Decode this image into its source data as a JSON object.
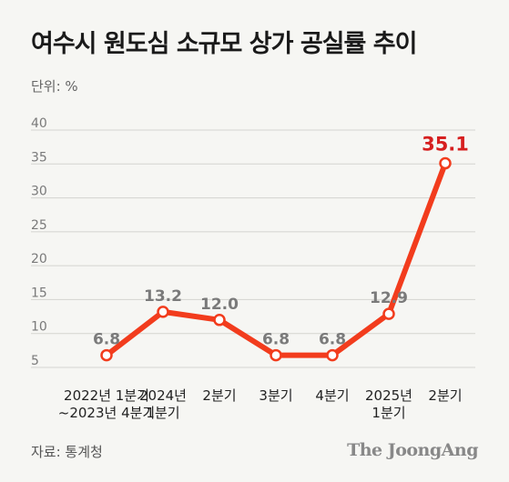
{
  "header": {
    "title": "여수시 원도심 소규모 상가 공실률 추이",
    "unit": "단위: %"
  },
  "footer": {
    "source": "자료: 통계청",
    "brand": "The JoongAng"
  },
  "colors": {
    "line": "#f23c1d",
    "highlight": "#d61f1f",
    "grid": "#d4d4d0"
  },
  "chart_data": {
    "type": "line",
    "title": "여수시 원도심 소규모 상가 공실률 추이",
    "ylabel": "단위: %",
    "ylim": [
      5,
      40
    ],
    "yticks": [
      "5",
      "10",
      "15",
      "20",
      "25",
      "30",
      "35",
      "40"
    ],
    "grid": true,
    "categories": [
      [
        "2022년 1분기",
        "~2023년 4분기"
      ],
      [
        "2024년",
        "1분기"
      ],
      [
        "2분기"
      ],
      [
        "3분기"
      ],
      [
        "4분기"
      ],
      [
        "2025년",
        "1분기"
      ],
      [
        "2분기"
      ]
    ],
    "values": [
      6.8,
      13.2,
      12.0,
      6.8,
      6.8,
      12.9,
      35.1
    ],
    "value_labels": [
      "6.8",
      "13.2",
      "12.0",
      "6.8",
      "6.8",
      "12.9",
      "35.1"
    ],
    "highlight_index": 6
  }
}
